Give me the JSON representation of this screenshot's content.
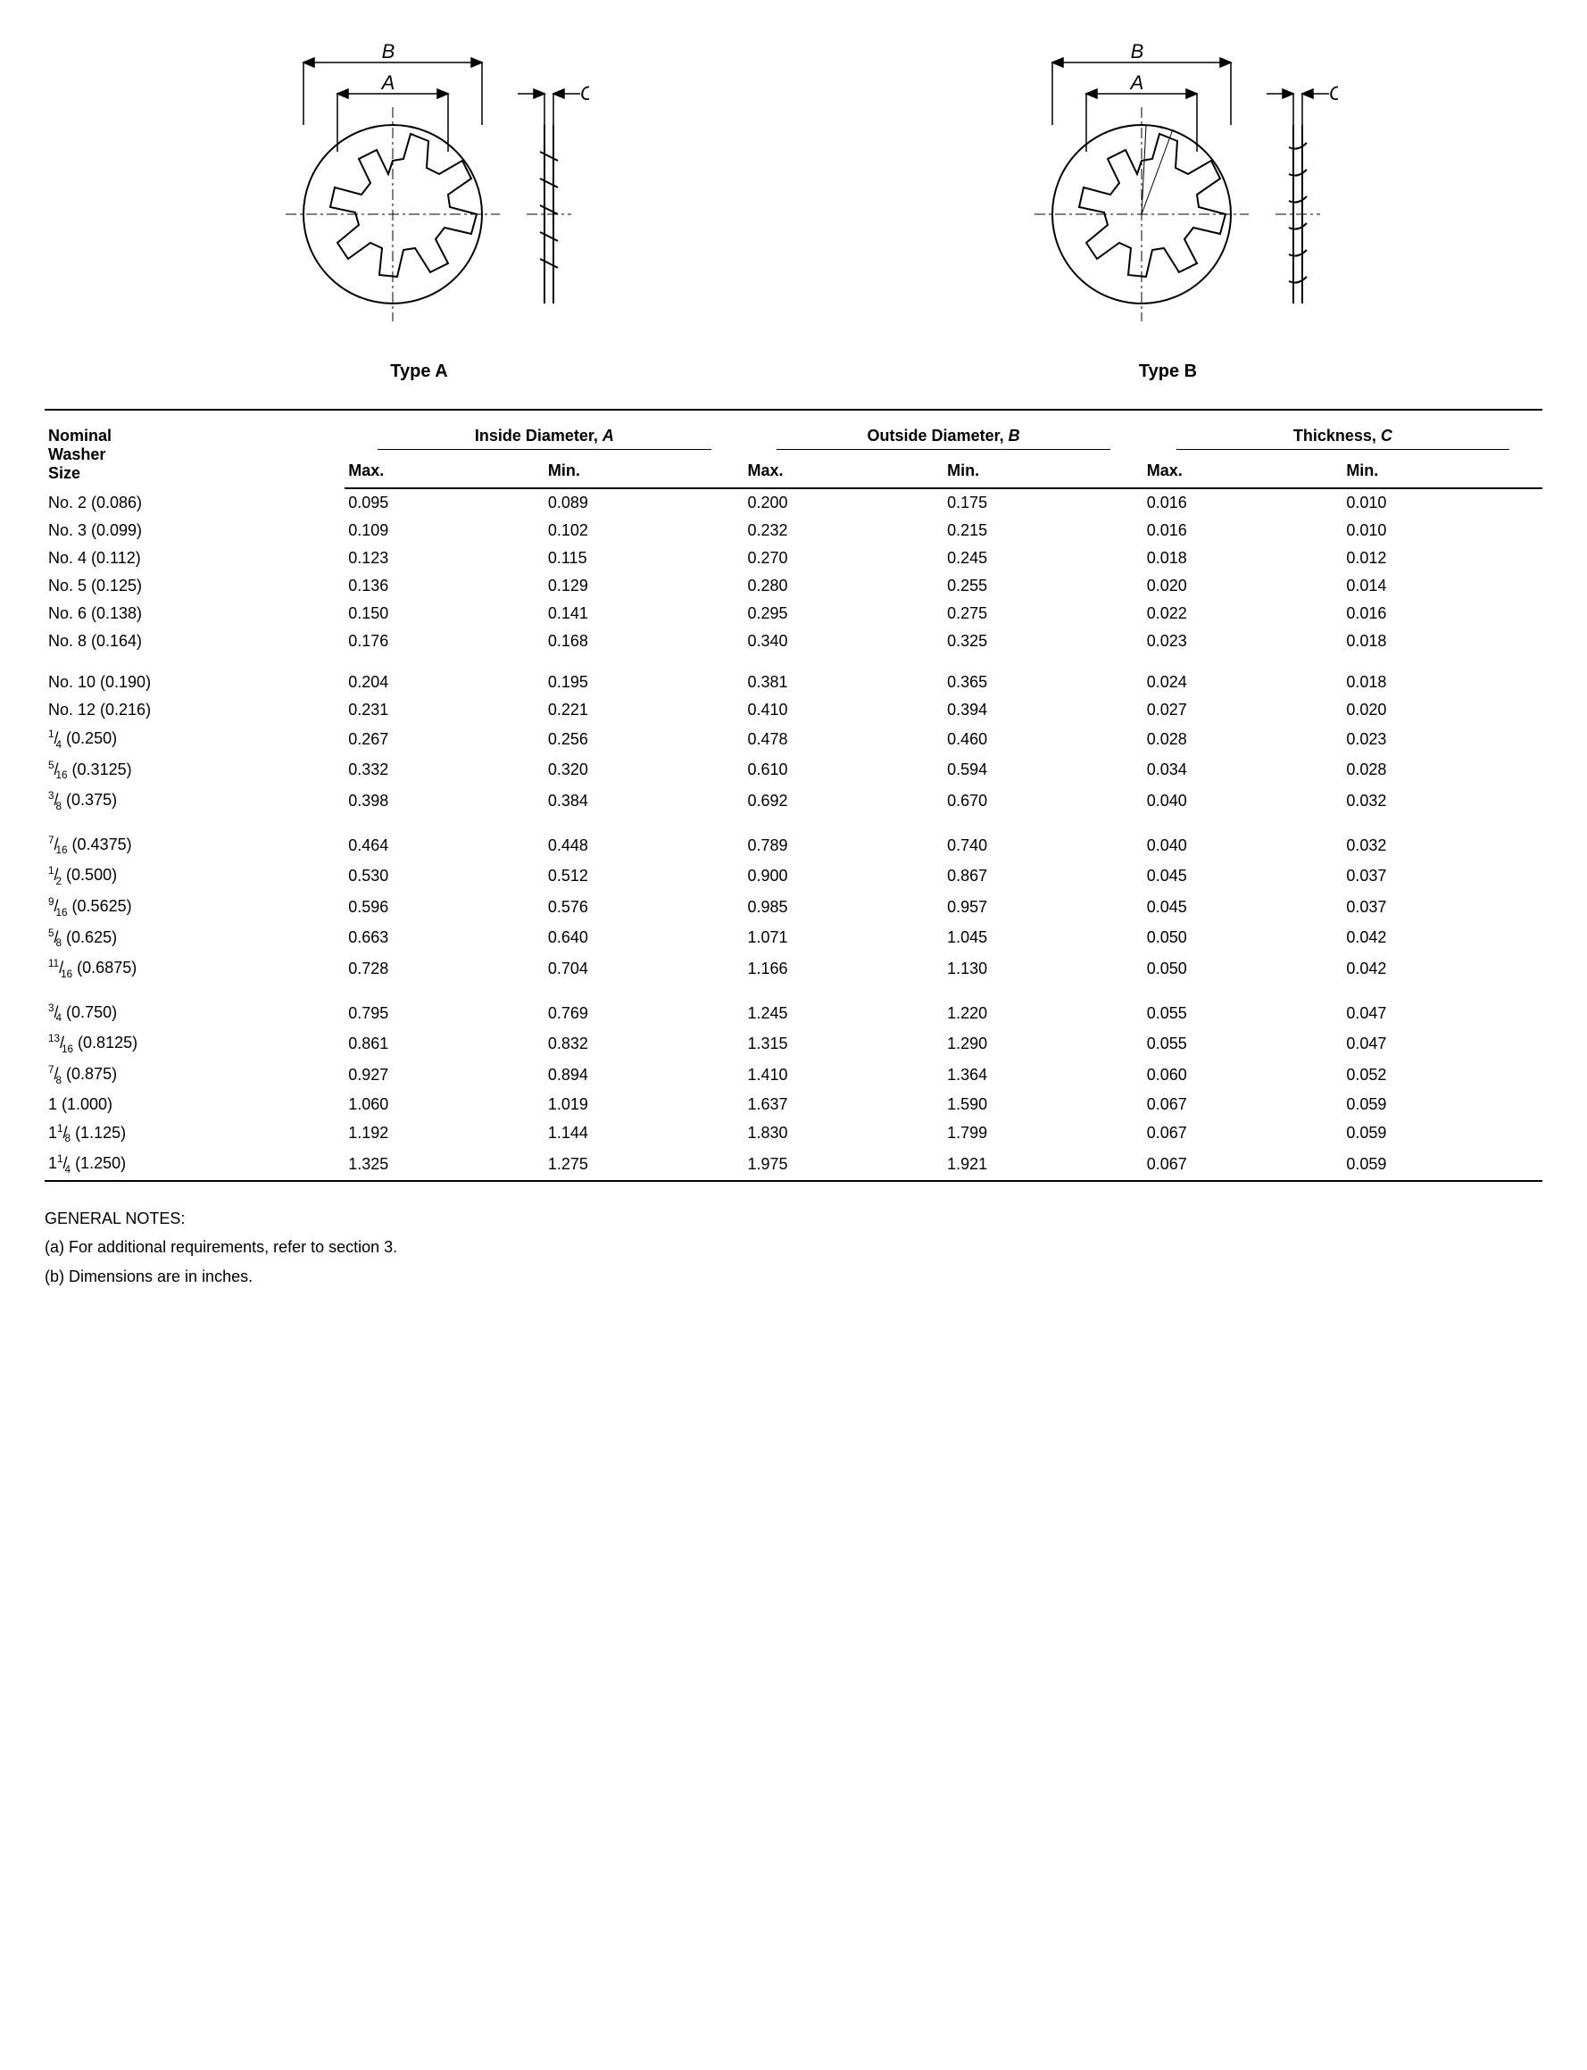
{
  "diagrams": {
    "typeA_label": "Type A",
    "typeB_label": "Type B",
    "dim_A": "A",
    "dim_B": "B",
    "dim_C": "C",
    "stroke_color": "#000000",
    "stroke_width": 1.5
  },
  "table": {
    "header_size_line1": "Nominal",
    "header_size_line2": "Washer",
    "header_size_line3": "Size",
    "header_inside": "Inside Diameter, ",
    "header_inside_var": "A",
    "header_outside": "Outside Diameter, ",
    "header_outside_var": "B",
    "header_thickness": "Thickness, ",
    "header_thickness_var": "C",
    "header_max": "Max.",
    "header_min": "Min.",
    "groups": [
      {
        "rows": [
          {
            "size": "No. 2  (0.086)",
            "a_max": "0.095",
            "a_min": "0.089",
            "b_max": "0.200",
            "b_min": "0.175",
            "c_max": "0.016",
            "c_min": "0.010"
          },
          {
            "size": "No. 3  (0.099)",
            "a_max": "0.109",
            "a_min": "0.102",
            "b_max": "0.232",
            "b_min": "0.215",
            "c_max": "0.016",
            "c_min": "0.010"
          },
          {
            "size": "No. 4  (0.112)",
            "a_max": "0.123",
            "a_min": "0.115",
            "b_max": "0.270",
            "b_min": "0.245",
            "c_max": "0.018",
            "c_min": "0.012"
          },
          {
            "size": "No. 5  (0.125)",
            "a_max": "0.136",
            "a_min": "0.129",
            "b_max": "0.280",
            "b_min": "0.255",
            "c_max": "0.020",
            "c_min": "0.014"
          },
          {
            "size": "No. 6  (0.138)",
            "a_max": "0.150",
            "a_min": "0.141",
            "b_max": "0.295",
            "b_min": "0.275",
            "c_max": "0.022",
            "c_min": "0.016"
          },
          {
            "size": "No. 8  (0.164)",
            "a_max": "0.176",
            "a_min": "0.168",
            "b_max": "0.340",
            "b_min": "0.325",
            "c_max": "0.023",
            "c_min": "0.018"
          }
        ]
      },
      {
        "rows": [
          {
            "size": "No. 10  (0.190)",
            "a_max": "0.204",
            "a_min": "0.195",
            "b_max": "0.381",
            "b_min": "0.365",
            "c_max": "0.024",
            "c_min": "0.018"
          },
          {
            "size": "No. 12  (0.216)",
            "a_max": "0.231",
            "a_min": "0.221",
            "b_max": "0.410",
            "b_min": "0.394",
            "c_max": "0.027",
            "c_min": "0.020"
          },
          {
            "size_html": "<span class='frac'><sup>1</sup>/<sub>4</sub></span>  (0.250)",
            "a_max": "0.267",
            "a_min": "0.256",
            "b_max": "0.478",
            "b_min": "0.460",
            "c_max": "0.028",
            "c_min": "0.023"
          },
          {
            "size_html": "<span class='frac'><sup>5</sup>/<sub>16</sub></span>  (0.3125)",
            "a_max": "0.332",
            "a_min": "0.320",
            "b_max": "0.610",
            "b_min": "0.594",
            "c_max": "0.034",
            "c_min": "0.028"
          },
          {
            "size_html": "<span class='frac'><sup>3</sup>/<sub>8</sub></span>  (0.375)",
            "a_max": "0.398",
            "a_min": "0.384",
            "b_max": "0.692",
            "b_min": "0.670",
            "c_max": "0.040",
            "c_min": "0.032"
          }
        ]
      },
      {
        "rows": [
          {
            "size_html": "<span class='frac'><sup>7</sup>/<sub>16</sub></span> (0.4375)",
            "a_max": "0.464",
            "a_min": "0.448",
            "b_max": "0.789",
            "b_min": "0.740",
            "c_max": "0.040",
            "c_min": "0.032"
          },
          {
            "size_html": "<span class='frac'><sup>1</sup>/<sub>2</sub></span>  (0.500)",
            "a_max": "0.530",
            "a_min": "0.512",
            "b_max": "0.900",
            "b_min": "0.867",
            "c_max": "0.045",
            "c_min": "0.037"
          },
          {
            "size_html": "<span class='frac'><sup>9</sup>/<sub>16</sub></span>  (0.5625)",
            "a_max": "0.596",
            "a_min": "0.576",
            "b_max": "0.985",
            "b_min": "0.957",
            "c_max": "0.045",
            "c_min": "0.037"
          },
          {
            "size_html": "<span class='frac'><sup>5</sup>/<sub>8</sub></span>  (0.625)",
            "a_max": "0.663",
            "a_min": "0.640",
            "b_max": "1.071",
            "b_min": "1.045",
            "c_max": "0.050",
            "c_min": "0.042"
          },
          {
            "size_html": "<span class='frac'><sup>11</sup>/<sub>16</sub></span>  (0.6875)",
            "a_max": "0.728",
            "a_min": "0.704",
            "b_max": "1.166",
            "b_min": "1.130",
            "c_max": "0.050",
            "c_min": "0.042"
          }
        ]
      },
      {
        "rows": [
          {
            "size_html": "<span class='frac'><sup>3</sup>/<sub>4</sub></span>  (0.750)",
            "a_max": "0.795",
            "a_min": "0.769",
            "b_max": "1.245",
            "b_min": "1.220",
            "c_max": "0.055",
            "c_min": "0.047"
          },
          {
            "size_html": "<span class='frac'><sup>13</sup>/<sub>16</sub></span>  (0.8125)",
            "a_max": "0.861",
            "a_min": "0.832",
            "b_max": "1.315",
            "b_min": "1.290",
            "c_max": "0.055",
            "c_min": "0.047"
          },
          {
            "size_html": "<span class='frac'><sup>7</sup>/<sub>8</sub></span>  (0.875)",
            "a_max": "0.927",
            "a_min": "0.894",
            "b_max": "1.410",
            "b_min": "1.364",
            "c_max": "0.060",
            "c_min": "0.052"
          },
          {
            "size": "1  (1.000)",
            "a_max": "1.060",
            "a_min": "1.019",
            "b_max": "1.637",
            "b_min": "1.590",
            "c_max": "0.067",
            "c_min": "0.059"
          },
          {
            "size_html": "1<span class='frac'><sup>1</sup>/<sub>8</sub></span>  (1.125)",
            "a_max": "1.192",
            "a_min": "1.144",
            "b_max": "1.830",
            "b_min": "1.799",
            "c_max": "0.067",
            "c_min": "0.059"
          },
          {
            "size_html": "1<span class='frac'><sup>1</sup>/<sub>4</sub></span>  (1.250)",
            "a_max": "1.325",
            "a_min": "1.275",
            "b_max": "1.975",
            "b_min": "1.921",
            "c_max": "0.067",
            "c_min": "0.059"
          }
        ]
      }
    ]
  },
  "notes": {
    "heading": "GENERAL NOTES:",
    "a": "(a)  For additional requirements, refer to section 3.",
    "b": "(b)  Dimensions are in inches."
  }
}
